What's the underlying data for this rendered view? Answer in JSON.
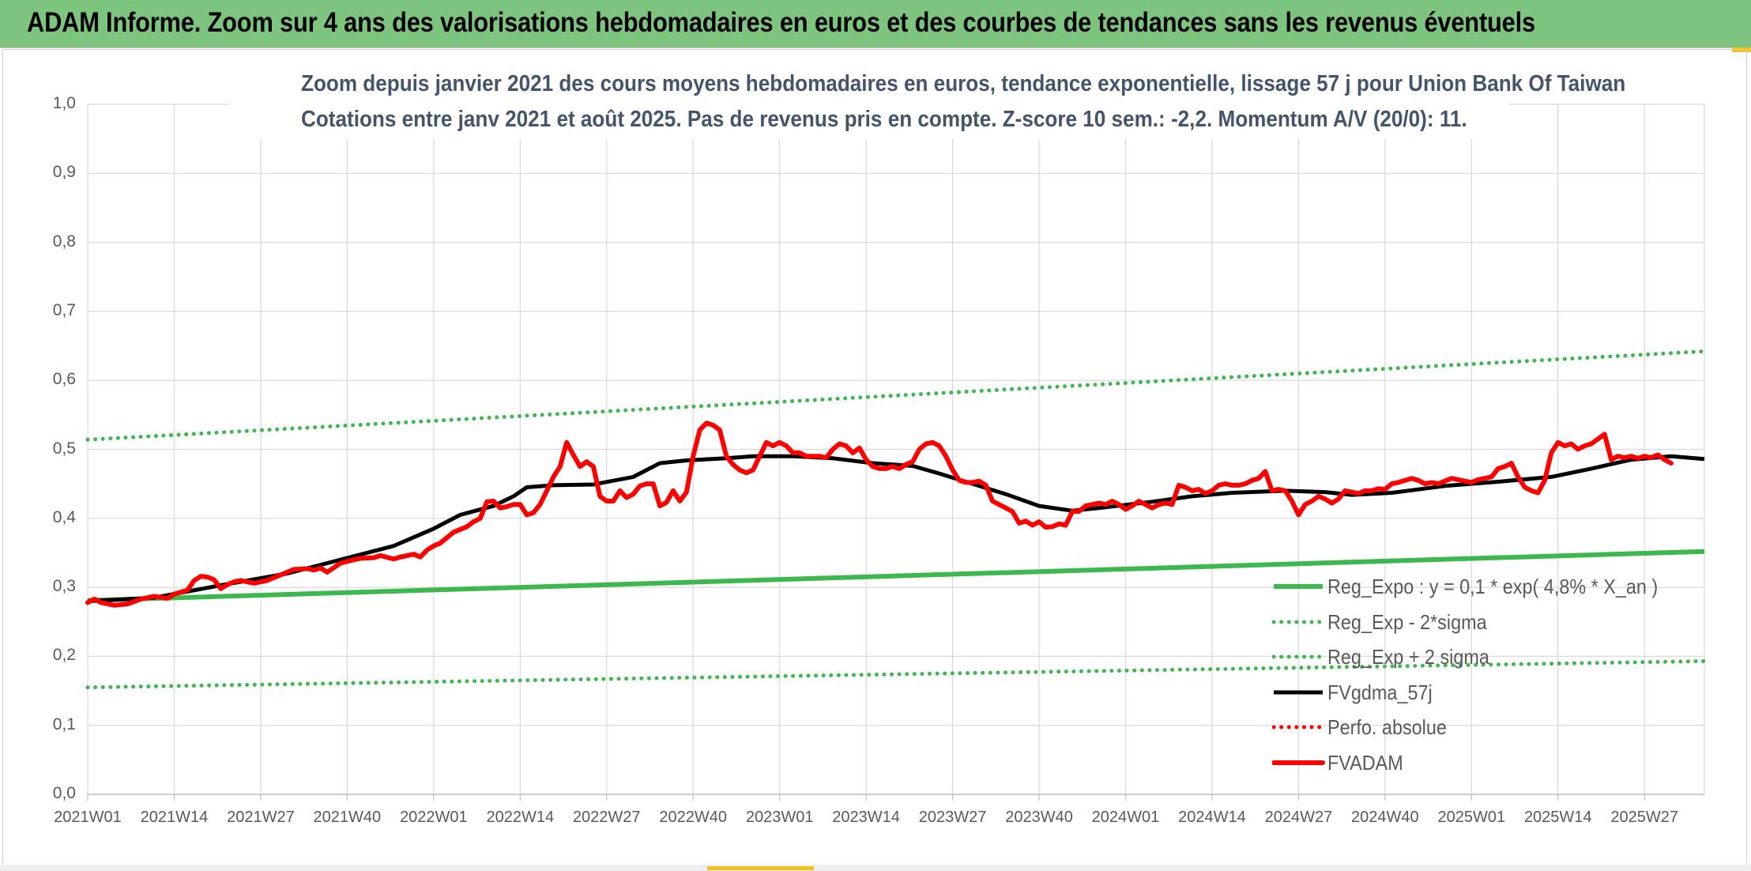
{
  "banner": {
    "title": "ADAM Informe. Zoom sur 4 ans des valorisations hebdomadaires en euros et des courbes de tendances sans les revenus éventuels",
    "color": "#7dc47f"
  },
  "chart_data": {
    "type": "line",
    "title": "Zoom depuis janvier 2021 des cours moyens hebdomadaires en euros, tendance exponentielle, lissage 57 j pour Union Bank Of Taiwan",
    "subtitle": "Cotations entre janv 2021 et août 2025. Pas de revenus pris en compte. Z-score 10 sem.: -2,2. Momentum A/V (20/0): 11.",
    "xlabel": "",
    "ylabel": "",
    "ylim": [
      0,
      1
    ],
    "yticks": [
      "0,0",
      "0,1",
      "0,2",
      "0,3",
      "0,4",
      "0,5",
      "0,6",
      "0,7",
      "0,8",
      "0,9",
      "1,0"
    ],
    "x_tick_labels": [
      "2021W01",
      "2021W14",
      "2021W27",
      "2021W40",
      "2022W01",
      "2022W14",
      "2022W27",
      "2022W40",
      "2023W01",
      "2023W14",
      "2023W27",
      "2023W40",
      "2024W01",
      "2024W14",
      "2024W27",
      "2024W40",
      "2025W01",
      "2025W14",
      "2025W27"
    ],
    "x_week_index": [
      0,
      13,
      26,
      39,
      52,
      65,
      78,
      91,
      104,
      117,
      130,
      143,
      156,
      169,
      182,
      195,
      208,
      221,
      234
    ],
    "x_range_weeks": [
      0,
      243
    ],
    "grid": true,
    "legend_position": "bottom-right",
    "series": [
      {
        "name": "Reg_Expo : y = 0,1 * exp( 4,8% *  X_an )",
        "color": "#3db84f",
        "style": "solid",
        "points": [
          [
            0,
            0.281
          ],
          [
            243,
            0.352
          ]
        ]
      },
      {
        "name": "Reg_Exp - 2*sigma",
        "color": "#3db84f",
        "style": "dotted",
        "points": [
          [
            0,
            0.155
          ],
          [
            243,
            0.193
          ]
        ]
      },
      {
        "name": "Reg_Exp + 2 sigma",
        "color": "#3db84f",
        "style": "dotted",
        "points": [
          [
            0,
            0.514
          ],
          [
            243,
            0.642
          ]
        ]
      },
      {
        "name": "FVgdma_57j",
        "color": "#000000",
        "style": "solid",
        "points": [
          [
            0,
            0.28
          ],
          [
            10,
            0.285
          ],
          [
            20,
            0.303
          ],
          [
            30,
            0.32
          ],
          [
            40,
            0.345
          ],
          [
            46,
            0.36
          ],
          [
            52,
            0.385
          ],
          [
            56,
            0.405
          ],
          [
            61,
            0.418
          ],
          [
            64,
            0.432
          ],
          [
            66,
            0.445
          ],
          [
            70,
            0.448
          ],
          [
            76,
            0.449
          ],
          [
            82,
            0.46
          ],
          [
            86,
            0.48
          ],
          [
            90,
            0.484
          ],
          [
            96,
            0.487
          ],
          [
            100,
            0.49
          ],
          [
            106,
            0.49
          ],
          [
            112,
            0.487
          ],
          [
            118,
            0.48
          ],
          [
            124,
            0.476
          ],
          [
            128,
            0.465
          ],
          [
            133,
            0.45
          ],
          [
            138,
            0.435
          ],
          [
            143,
            0.418
          ],
          [
            148,
            0.411
          ],
          [
            153,
            0.416
          ],
          [
            160,
            0.424
          ],
          [
            166,
            0.432
          ],
          [
            172,
            0.437
          ],
          [
            180,
            0.44
          ],
          [
            186,
            0.438
          ],
          [
            190,
            0.434
          ],
          [
            196,
            0.437
          ],
          [
            204,
            0.447
          ],
          [
            212,
            0.453
          ],
          [
            220,
            0.46
          ],
          [
            226,
            0.472
          ],
          [
            232,
            0.485
          ],
          [
            238,
            0.49
          ],
          [
            243,
            0.486
          ]
        ]
      },
      {
        "name": "Perfo. absolue",
        "color": "#ff0000",
        "style": "dotted",
        "points": []
      },
      {
        "name": "FVADAM",
        "color": "#ff0000",
        "style": "solid",
        "points": [
          [
            0,
            0.278
          ],
          [
            1,
            0.283
          ],
          [
            2,
            0.278
          ],
          [
            4,
            0.274
          ],
          [
            6,
            0.276
          ],
          [
            8,
            0.283
          ],
          [
            10,
            0.287
          ],
          [
            12,
            0.284
          ],
          [
            13,
            0.29
          ],
          [
            15,
            0.296
          ],
          [
            16,
            0.31
          ],
          [
            17,
            0.316
          ],
          [
            18,
            0.315
          ],
          [
            19,
            0.311
          ],
          [
            20,
            0.298
          ],
          [
            21,
            0.304
          ],
          [
            22,
            0.308
          ],
          [
            23,
            0.31
          ],
          [
            25,
            0.306
          ],
          [
            27,
            0.31
          ],
          [
            29,
            0.318
          ],
          [
            31,
            0.326
          ],
          [
            33,
            0.327
          ],
          [
            34,
            0.325
          ],
          [
            35,
            0.328
          ],
          [
            36,
            0.322
          ],
          [
            38,
            0.335
          ],
          [
            40,
            0.34
          ],
          [
            41,
            0.342
          ],
          [
            43,
            0.343
          ],
          [
            44,
            0.346
          ],
          [
            46,
            0.341
          ],
          [
            47,
            0.344
          ],
          [
            49,
            0.348
          ],
          [
            50,
            0.344
          ],
          [
            51,
            0.354
          ],
          [
            52,
            0.36
          ],
          [
            53,
            0.364
          ],
          [
            54,
            0.372
          ],
          [
            55,
            0.38
          ],
          [
            57,
            0.388
          ],
          [
            58,
            0.395
          ],
          [
            59,
            0.4
          ],
          [
            60,
            0.424
          ],
          [
            61,
            0.425
          ],
          [
            62,
            0.415
          ],
          [
            63,
            0.417
          ],
          [
            64,
            0.42
          ],
          [
            65,
            0.42
          ],
          [
            66,
            0.405
          ],
          [
            67,
            0.408
          ],
          [
            68,
            0.42
          ],
          [
            69,
            0.44
          ],
          [
            70,
            0.46
          ],
          [
            71,
            0.475
          ],
          [
            72,
            0.51
          ],
          [
            73,
            0.492
          ],
          [
            74,
            0.475
          ],
          [
            75,
            0.482
          ],
          [
            76,
            0.475
          ],
          [
            77,
            0.432
          ],
          [
            78,
            0.425
          ],
          [
            79,
            0.425
          ],
          [
            80,
            0.44
          ],
          [
            81,
            0.43
          ],
          [
            82,
            0.435
          ],
          [
            83,
            0.447
          ],
          [
            84,
            0.45
          ],
          [
            85,
            0.45
          ],
          [
            86,
            0.418
          ],
          [
            87,
            0.423
          ],
          [
            88,
            0.44
          ],
          [
            89,
            0.425
          ],
          [
            90,
            0.438
          ],
          [
            91,
            0.49
          ],
          [
            92,
            0.528
          ],
          [
            93,
            0.538
          ],
          [
            94,
            0.535
          ],
          [
            95,
            0.528
          ],
          [
            96,
            0.49
          ],
          [
            97,
            0.478
          ],
          [
            98,
            0.47
          ],
          [
            99,
            0.466
          ],
          [
            100,
            0.47
          ],
          [
            101,
            0.49
          ],
          [
            102,
            0.51
          ],
          [
            103,
            0.505
          ],
          [
            104,
            0.51
          ],
          [
            105,
            0.505
          ],
          [
            106,
            0.495
          ],
          [
            107,
            0.495
          ],
          [
            108,
            0.49
          ],
          [
            109,
            0.49
          ],
          [
            110,
            0.49
          ],
          [
            111,
            0.488
          ],
          [
            112,
            0.5
          ],
          [
            113,
            0.508
          ],
          [
            114,
            0.505
          ],
          [
            115,
            0.495
          ],
          [
            116,
            0.502
          ],
          [
            117,
            0.485
          ],
          [
            118,
            0.475
          ],
          [
            119,
            0.472
          ],
          [
            120,
            0.472
          ],
          [
            121,
            0.475
          ],
          [
            122,
            0.472
          ],
          [
            123,
            0.478
          ],
          [
            124,
            0.482
          ],
          [
            125,
            0.5
          ],
          [
            126,
            0.508
          ],
          [
            127,
            0.51
          ],
          [
            128,
            0.505
          ],
          [
            129,
            0.49
          ],
          [
            130,
            0.47
          ],
          [
            131,
            0.455
          ],
          [
            132,
            0.452
          ],
          [
            133,
            0.452
          ],
          [
            134,
            0.454
          ],
          [
            135,
            0.448
          ],
          [
            136,
            0.425
          ],
          [
            137,
            0.42
          ],
          [
            138,
            0.415
          ],
          [
            139,
            0.41
          ],
          [
            140,
            0.393
          ],
          [
            141,
            0.396
          ],
          [
            142,
            0.39
          ],
          [
            143,
            0.395
          ],
          [
            144,
            0.387
          ],
          [
            145,
            0.388
          ],
          [
            146,
            0.392
          ],
          [
            147,
            0.39
          ],
          [
            148,
            0.41
          ],
          [
            149,
            0.41
          ],
          [
            150,
            0.418
          ],
          [
            151,
            0.42
          ],
          [
            152,
            0.422
          ],
          [
            153,
            0.42
          ],
          [
            154,
            0.425
          ],
          [
            155,
            0.42
          ],
          [
            156,
            0.413
          ],
          [
            157,
            0.418
          ],
          [
            158,
            0.425
          ],
          [
            159,
            0.42
          ],
          [
            160,
            0.415
          ],
          [
            161,
            0.42
          ],
          [
            162,
            0.422
          ],
          [
            163,
            0.42
          ],
          [
            164,
            0.448
          ],
          [
            165,
            0.445
          ],
          [
            166,
            0.44
          ],
          [
            167,
            0.442
          ],
          [
            168,
            0.436
          ],
          [
            169,
            0.44
          ],
          [
            170,
            0.448
          ],
          [
            171,
            0.45
          ],
          [
            172,
            0.448
          ],
          [
            173,
            0.448
          ],
          [
            174,
            0.45
          ],
          [
            175,
            0.455
          ],
          [
            176,
            0.458
          ],
          [
            177,
            0.468
          ],
          [
            178,
            0.44
          ],
          [
            179,
            0.442
          ],
          [
            180,
            0.44
          ],
          [
            181,
            0.425
          ],
          [
            182,
            0.405
          ],
          [
            183,
            0.42
          ],
          [
            184,
            0.425
          ],
          [
            185,
            0.432
          ],
          [
            186,
            0.428
          ],
          [
            187,
            0.422
          ],
          [
            188,
            0.428
          ],
          [
            189,
            0.44
          ],
          [
            190,
            0.438
          ],
          [
            191,
            0.436
          ],
          [
            192,
            0.44
          ],
          [
            193,
            0.44
          ],
          [
            194,
            0.443
          ],
          [
            195,
            0.442
          ],
          [
            196,
            0.45
          ],
          [
            197,
            0.452
          ],
          [
            198,
            0.455
          ],
          [
            199,
            0.458
          ],
          [
            200,
            0.455
          ],
          [
            201,
            0.45
          ],
          [
            202,
            0.452
          ],
          [
            203,
            0.45
          ],
          [
            204,
            0.454
          ],
          [
            205,
            0.458
          ],
          [
            206,
            0.456
          ],
          [
            207,
            0.454
          ],
          [
            208,
            0.452
          ],
          [
            209,
            0.456
          ],
          [
            210,
            0.458
          ],
          [
            211,
            0.46
          ],
          [
            212,
            0.472
          ],
          [
            213,
            0.475
          ],
          [
            214,
            0.48
          ],
          [
            215,
            0.46
          ],
          [
            216,
            0.445
          ],
          [
            217,
            0.44
          ],
          [
            218,
            0.437
          ],
          [
            219,
            0.455
          ],
          [
            220,
            0.495
          ],
          [
            221,
            0.51
          ],
          [
            222,
            0.505
          ],
          [
            223,
            0.508
          ],
          [
            224,
            0.5
          ],
          [
            225,
            0.505
          ],
          [
            226,
            0.508
          ],
          [
            227,
            0.515
          ],
          [
            228,
            0.522
          ],
          [
            229,
            0.485
          ],
          [
            230,
            0.49
          ],
          [
            231,
            0.488
          ],
          [
            232,
            0.49
          ],
          [
            233,
            0.487
          ],
          [
            234,
            0.49
          ],
          [
            235,
            0.488
          ],
          [
            236,
            0.492
          ],
          [
            237,
            0.485
          ],
          [
            238,
            0.48
          ]
        ]
      }
    ]
  }
}
